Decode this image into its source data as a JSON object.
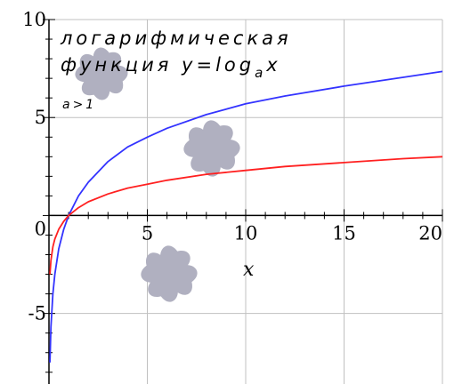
{
  "chart_data": {
    "type": "line",
    "xlabel": "x",
    "ylabel": "",
    "xlim": [
      0,
      20
    ],
    "ylim": [
      -8.6,
      10
    ],
    "x_ticks": [
      0,
      5,
      10,
      15,
      20
    ],
    "x_tick_labels": [
      "0",
      "5",
      "10",
      "15",
      "20"
    ],
    "y_ticks": [
      -5,
      0,
      5,
      10
    ],
    "y_tick_labels": [
      "-5",
      "0",
      "5",
      "10"
    ],
    "grid": true,
    "annotation": {
      "line1": "логарифмическая",
      "line2_prefix": "функция y=log",
      "line2_sub": "a",
      "line2_suffix": "x",
      "line3": "a>1"
    },
    "series": [
      {
        "color": "#3333ff",
        "x": [
          0.05,
          0.1,
          0.2,
          0.3,
          0.5,
          0.75,
          1,
          1.5,
          2,
          3,
          4,
          5,
          6,
          8,
          10,
          12,
          15,
          18,
          20
        ],
        "y": [
          -7.5,
          -5.7,
          -4.0,
          -3.0,
          -1.7,
          -0.7,
          0,
          1.0,
          1.7,
          2.75,
          3.5,
          4.0,
          4.45,
          5.15,
          5.7,
          6.1,
          6.6,
          7.05,
          7.35
        ]
      },
      {
        "color": "#ff2020",
        "x": [
          0.05,
          0.1,
          0.2,
          0.3,
          0.5,
          0.75,
          1,
          1.5,
          2,
          3,
          4,
          5,
          6,
          8,
          10,
          12,
          15,
          18,
          20
        ],
        "y": [
          -3.0,
          -2.3,
          -1.6,
          -1.2,
          -0.7,
          -0.3,
          0,
          0.4,
          0.7,
          1.1,
          1.4,
          1.6,
          1.8,
          2.1,
          2.3,
          2.5,
          2.7,
          2.9,
          3.0
        ]
      }
    ]
  },
  "colors": {
    "grid": "#c0c0c0",
    "axis": "#000000",
    "decoration": "#b0b0c0"
  },
  "decorations": [
    "flower-icon",
    "flower-icon",
    "flower-icon"
  ]
}
